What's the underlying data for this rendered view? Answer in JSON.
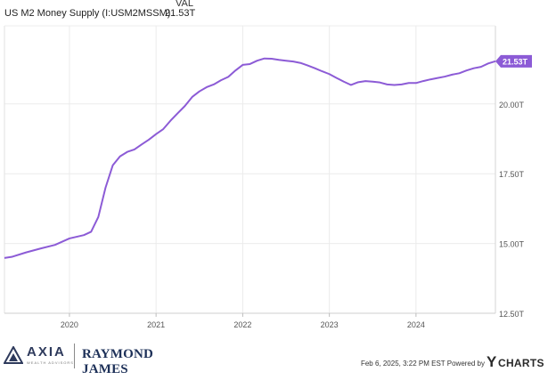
{
  "legend": {
    "val_header": "VAL",
    "series_name": "US M2 Money Supply (I:USM2MSSM)",
    "series_value": "21.53T"
  },
  "chart_data": {
    "type": "line",
    "series": [
      {
        "name": "US M2 Money Supply (I:USM2MSSM)",
        "color": "#8c5bd6",
        "points": [
          [
            "2019-04",
            14.48
          ],
          [
            "2019-05",
            14.52
          ],
          [
            "2019-07",
            14.68
          ],
          [
            "2019-09",
            14.82
          ],
          [
            "2019-11",
            14.95
          ],
          [
            "2020-01",
            15.18
          ],
          [
            "2020-03",
            15.3
          ],
          [
            "2020-04",
            15.42
          ],
          [
            "2020-05",
            15.95
          ],
          [
            "2020-06",
            17.0
          ],
          [
            "2020-07",
            17.8
          ],
          [
            "2020-08",
            18.12
          ],
          [
            "2020-09",
            18.28
          ],
          [
            "2020-10",
            18.37
          ],
          [
            "2020-11",
            18.55
          ],
          [
            "2020-12",
            18.72
          ],
          [
            "2021-01",
            18.92
          ],
          [
            "2021-02",
            19.1
          ],
          [
            "2021-03",
            19.4
          ],
          [
            "2021-04",
            19.67
          ],
          [
            "2021-05",
            19.93
          ],
          [
            "2021-06",
            20.25
          ],
          [
            "2021-07",
            20.45
          ],
          [
            "2021-08",
            20.6
          ],
          [
            "2021-09",
            20.7
          ],
          [
            "2021-10",
            20.85
          ],
          [
            "2021-11",
            20.97
          ],
          [
            "2021-12",
            21.2
          ],
          [
            "2022-01",
            21.4
          ],
          [
            "2022-02",
            21.43
          ],
          [
            "2022-03",
            21.55
          ],
          [
            "2022-04",
            21.63
          ],
          [
            "2022-05",
            21.62
          ],
          [
            "2022-06",
            21.58
          ],
          [
            "2022-07",
            21.55
          ],
          [
            "2022-08",
            21.52
          ],
          [
            "2022-09",
            21.47
          ],
          [
            "2022-10",
            21.38
          ],
          [
            "2022-11",
            21.28
          ],
          [
            "2022-12",
            21.17
          ],
          [
            "2023-01",
            21.07
          ],
          [
            "2023-02",
            20.93
          ],
          [
            "2023-03",
            20.8
          ],
          [
            "2023-04",
            20.68
          ],
          [
            "2023-05",
            20.78
          ],
          [
            "2023-06",
            20.82
          ],
          [
            "2023-07",
            20.8
          ],
          [
            "2023-08",
            20.77
          ],
          [
            "2023-09",
            20.7
          ],
          [
            "2023-10",
            20.68
          ],
          [
            "2023-11",
            20.7
          ],
          [
            "2023-12",
            20.75
          ],
          [
            "2024-01",
            20.75
          ],
          [
            "2024-02",
            20.82
          ],
          [
            "2024-03",
            20.88
          ],
          [
            "2024-04",
            20.93
          ],
          [
            "2024-05",
            20.98
          ],
          [
            "2024-06",
            21.05
          ],
          [
            "2024-07",
            21.1
          ],
          [
            "2024-08",
            21.2
          ],
          [
            "2024-09",
            21.28
          ],
          [
            "2024-10",
            21.33
          ],
          [
            "2024-11",
            21.45
          ],
          [
            "2024-12",
            21.53
          ]
        ]
      }
    ],
    "x_ticks": [
      "2020",
      "2021",
      "2022",
      "2023",
      "2024"
    ],
    "y_ticks": [
      "12.50T",
      "15.00T",
      "17.50T",
      "20.00T"
    ],
    "last_value_label": "21.53T",
    "xlim": [
      "2019-04",
      "2024-12"
    ],
    "ylim": [
      12.5,
      22.8
    ],
    "grid": true
  },
  "footer": {
    "axia_name": "AXIA",
    "axia_sub": "WEALTH ADVISORS",
    "raymond_james": "RAYMOND JAMES",
    "attribution": "Feb 6, 2025, 3:22 PM EST Powered by",
    "ycharts_y": "Y",
    "ycharts_word": "CHARTS"
  }
}
